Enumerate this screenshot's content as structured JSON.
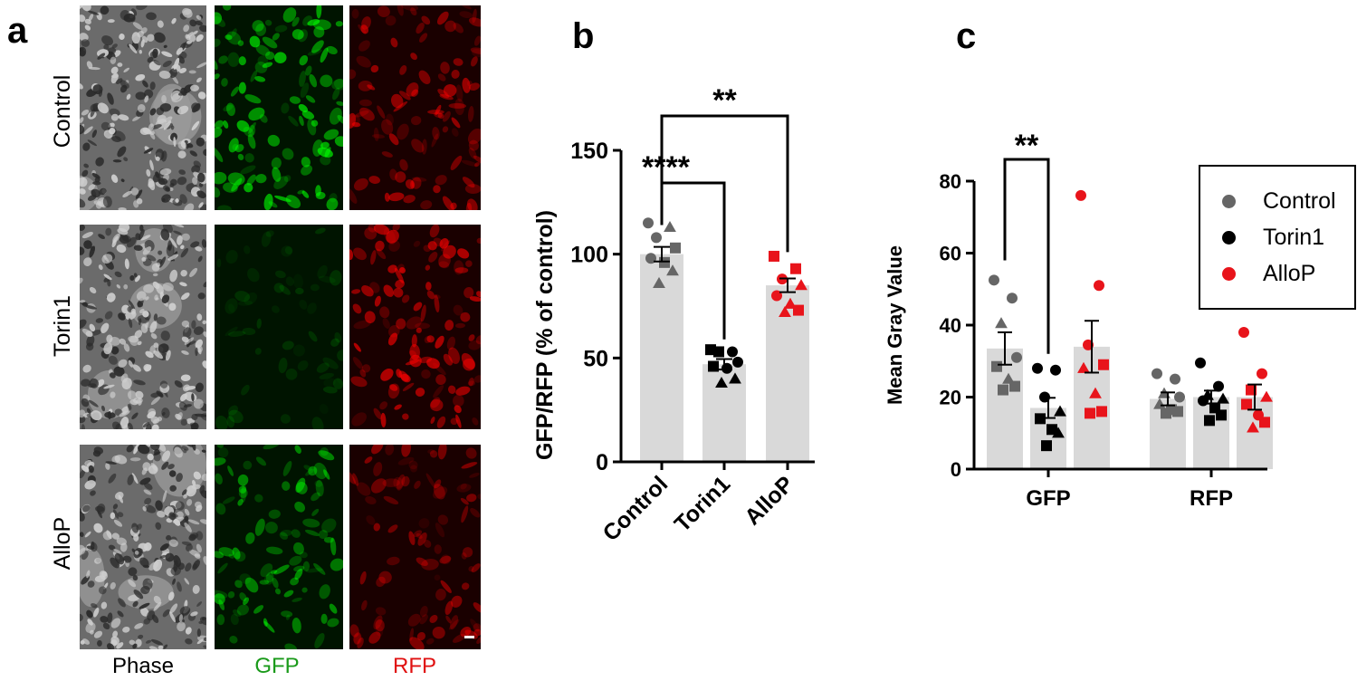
{
  "figure": {
    "panel_letters": [
      "a",
      "b",
      "c"
    ]
  },
  "panel_a": {
    "row_labels": [
      "Control",
      "Torin1",
      "AlloP"
    ],
    "column_labels": [
      "Phase",
      "GFP",
      "RFP"
    ],
    "column_label_colors": [
      "#000000",
      "#1a9a1a",
      "#e01010"
    ],
    "channel_colors": {
      "Phase": "#5a5a5a",
      "GFP": "#00ff00",
      "RFP": "#ff0000"
    },
    "relative_intensity": {
      "Control": {
        "GFP": 1.0,
        "RFP": 0.85
      },
      "Torin1": {
        "GFP": 0.2,
        "RFP": 1.0
      },
      "AlloP": {
        "GFP": 0.75,
        "RFP": 0.7
      }
    }
  },
  "chart_data": [
    {
      "panel": "b",
      "type": "bar",
      "categories": [
        "Control",
        "Torin1",
        "AlloP"
      ],
      "values": [
        100,
        47,
        85
      ],
      "sem": [
        3.5,
        2.5,
        3.3
      ],
      "ylabel": "GFP/RFP (% of control)",
      "ylim": [
        0,
        150
      ],
      "yticks": [
        0,
        50,
        100,
        150
      ],
      "bar_color": "#d9d9d9",
      "point_colors": [
        "#666666",
        "#000000",
        "#e8141b"
      ],
      "points": [
        [
          {
            "v": 115,
            "s": "circle"
          },
          {
            "v": 113,
            "s": "triangle"
          },
          {
            "v": 108,
            "s": "circle"
          },
          {
            "v": 103,
            "s": "square"
          },
          {
            "v": 98,
            "s": "circle"
          },
          {
            "v": 96,
            "s": "square"
          },
          {
            "v": 92,
            "s": "triangle"
          },
          {
            "v": 86,
            "s": "triangle"
          }
        ],
        [
          {
            "v": 54,
            "s": "square"
          },
          {
            "v": 53,
            "s": "circle"
          },
          {
            "v": 53,
            "s": "square"
          },
          {
            "v": 48,
            "s": "circle"
          },
          {
            "v": 46,
            "s": "square"
          },
          {
            "v": 45,
            "s": "circle"
          },
          {
            "v": 40,
            "s": "triangle"
          },
          {
            "v": 38,
            "s": "triangle"
          }
        ],
        [
          {
            "v": 99,
            "s": "square"
          },
          {
            "v": 93,
            "s": "square"
          },
          {
            "v": 88,
            "s": "circle"
          },
          {
            "v": 85,
            "s": "triangle"
          },
          {
            "v": 80,
            "s": "circle"
          },
          {
            "v": 76,
            "s": "triangle"
          },
          {
            "v": 73,
            "s": "square"
          },
          {
            "v": 72,
            "s": "triangle"
          }
        ]
      ],
      "significance": [
        {
          "pair": [
            "Control",
            "Torin1"
          ],
          "label": "****"
        },
        {
          "pair": [
            "Control",
            "AlloP"
          ],
          "label": "**"
        }
      ]
    },
    {
      "panel": "c",
      "type": "bar",
      "categories": [
        "GFP",
        "RFP"
      ],
      "series": [
        {
          "name": "Control",
          "color": "#666666",
          "values": [
            33.5,
            19.5
          ],
          "sem": [
            4.5,
            1.8
          ],
          "points": [
            [
              {
                "v": 52.5,
                "s": "circle"
              },
              {
                "v": 47.5,
                "s": "circle"
              },
              {
                "v": 40.5,
                "s": "triangle"
              },
              {
                "v": 31,
                "s": "circle"
              },
              {
                "v": 28.5,
                "s": "square"
              },
              {
                "v": 25,
                "s": "triangle"
              },
              {
                "v": 23,
                "s": "square"
              },
              {
                "v": 22,
                "s": "square"
              }
            ],
            [
              {
                "v": 26.5,
                "s": "circle"
              },
              {
                "v": 25,
                "s": "circle"
              },
              {
                "v": 21,
                "s": "triangle"
              },
              {
                "v": 20,
                "s": "circle"
              },
              {
                "v": 18,
                "s": "triangle"
              },
              {
                "v": 16.5,
                "s": "square"
              },
              {
                "v": 16,
                "s": "square"
              },
              {
                "v": 15.5,
                "s": "square"
              }
            ]
          ]
        },
        {
          "name": "Torin1",
          "color": "#000000",
          "values": [
            17,
            20
          ],
          "sem": [
            2.8,
            1.8
          ],
          "points": [
            [
              {
                "v": 28,
                "s": "circle"
              },
              {
                "v": 27.5,
                "s": "circle"
              },
              {
                "v": 20,
                "s": "circle"
              },
              {
                "v": 16,
                "s": "triangle"
              },
              {
                "v": 14,
                "s": "square"
              },
              {
                "v": 11,
                "s": "square"
              },
              {
                "v": 10,
                "s": "triangle"
              },
              {
                "v": 6.5,
                "s": "square"
              }
            ],
            [
              {
                "v": 29.5,
                "s": "circle"
              },
              {
                "v": 23,
                "s": "circle"
              },
              {
                "v": 20.5,
                "s": "triangle"
              },
              {
                "v": 19.5,
                "s": "triangle"
              },
              {
                "v": 19,
                "s": "circle"
              },
              {
                "v": 17,
                "s": "square"
              },
              {
                "v": 15,
                "s": "square"
              },
              {
                "v": 13.5,
                "s": "square"
              }
            ]
          ]
        },
        {
          "name": "AlloP",
          "color": "#e8141b",
          "values": [
            34,
            20
          ],
          "sem": [
            7.2,
            3.5
          ],
          "points": [
            [
              {
                "v": 76,
                "s": "circle"
              },
              {
                "v": 51,
                "s": "circle"
              },
              {
                "v": 34.5,
                "s": "circle"
              },
              {
                "v": 29,
                "s": "square"
              },
              {
                "v": 28,
                "s": "triangle"
              },
              {
                "v": 21,
                "s": "triangle"
              },
              {
                "v": 16,
                "s": "square"
              },
              {
                "v": 15.5,
                "s": "square"
              }
            ],
            [
              {
                "v": 38,
                "s": "circle"
              },
              {
                "v": 26.5,
                "s": "circle"
              },
              {
                "v": 22,
                "s": "square"
              },
              {
                "v": 20,
                "s": "triangle"
              },
              {
                "v": 18,
                "s": "square"
              },
              {
                "v": 15,
                "s": "circle"
              },
              {
                "v": 13,
                "s": "square"
              },
              {
                "v": 11.5,
                "s": "triangle"
              }
            ]
          ]
        }
      ],
      "ylabel": "Mean Gray Value",
      "ylim": [
        0,
        80
      ],
      "yticks": [
        0,
        20,
        40,
        60,
        80
      ],
      "legend_position": "top-right",
      "significance": [
        {
          "group": "GFP",
          "pair": [
            "Control",
            "Torin1"
          ],
          "label": "**"
        }
      ]
    }
  ]
}
